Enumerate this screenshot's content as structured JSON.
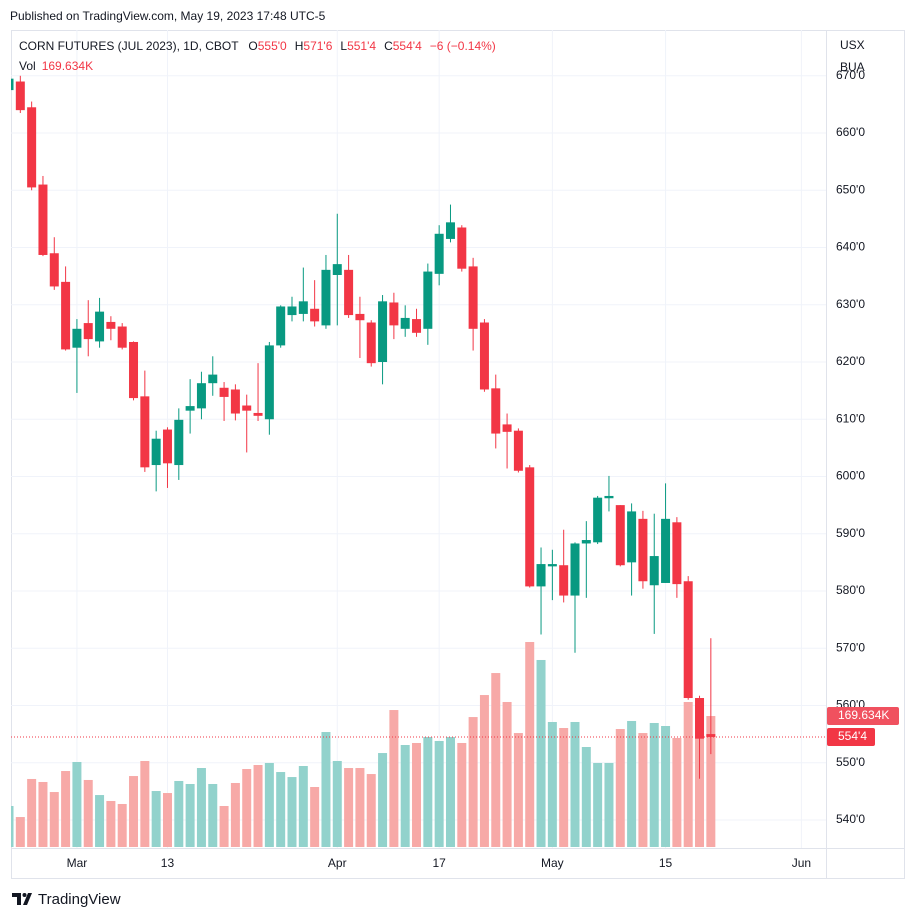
{
  "published": "Published on TradingView.com, May 19, 2023 17:48 UTC-5",
  "brand": "TradingView",
  "header": {
    "symbol": "CORN FUTURES (JUL 2023), 1D, CBOT",
    "items": [
      {
        "key": "O",
        "value": "555'0"
      },
      {
        "key": "H",
        "value": "571'6"
      },
      {
        "key": "L",
        "value": "551'4"
      },
      {
        "key": "C",
        "value": "554'4"
      }
    ],
    "change": "−6 (−0.14%)",
    "volume_key": "Vol",
    "volume_value": "169.634K",
    "currency": "USX",
    "unit": "BUA"
  },
  "chart_data": {
    "type": "candlestick",
    "up_color": "#089981",
    "down_color": "#f23645",
    "volume_up_color": "#92d2cc",
    "volume_down_color": "#f7a9a7",
    "categories": [
      null,
      null,
      null,
      null,
      null,
      null,
      "Mar",
      null,
      null,
      null,
      null,
      null,
      null,
      null,
      "13",
      null,
      null,
      null,
      null,
      null,
      null,
      null,
      null,
      null,
      null,
      null,
      null,
      null,
      null,
      "Apr",
      null,
      null,
      null,
      null,
      null,
      null,
      null,
      null,
      "17",
      null,
      null,
      null,
      null,
      null,
      null,
      null,
      null,
      null,
      "May",
      null,
      null,
      null,
      null,
      null,
      null,
      null,
      null,
      null,
      "15",
      null,
      null,
      null,
      null,
      null,
      null,
      null,
      null,
      null,
      null,
      null,
      "Jun"
    ],
    "open": [
      667.5,
      669,
      664.5,
      651,
      639,
      634,
      622.5,
      626.8,
      623.6,
      627,
      626.2,
      623.5,
      614,
      602,
      608.2,
      602,
      611.5,
      611.9,
      616.3,
      615.5,
      615.2,
      612.4,
      611.1,
      610,
      622.9,
      628.2,
      628.4,
      629.3,
      626.4,
      635.2,
      636.1,
      628.4,
      626.9,
      620,
      630.4,
      625.8,
      627.5,
      625.8,
      635.4,
      641.5,
      643.5,
      636.7,
      626.9,
      615.4,
      609.1,
      608,
      601.6,
      580.8,
      584.3,
      584.5,
      579.2,
      588.3,
      588.5,
      596.2,
      595,
      585,
      592.6,
      581,
      581.4,
      592,
      581.7,
      561.3,
      555,
      null,
      null,
      null,
      null,
      null,
      null,
      null,
      null
    ],
    "high": [
      670.5,
      670,
      665.5,
      652.5,
      641.8,
      636.7,
      627.5,
      630.8,
      631.2,
      628,
      626.8,
      623.6,
      618.5,
      608,
      608.6,
      611.9,
      617,
      618.3,
      621,
      616.5,
      616.1,
      614.3,
      619.8,
      623.5,
      629.9,
      631.4,
      636.5,
      634.3,
      638.7,
      645.9,
      638.7,
      631.4,
      627.3,
      631.7,
      632.1,
      629.9,
      629.3,
      637.2,
      643.9,
      647.5,
      643.9,
      638.2,
      627.5,
      617.8,
      611,
      608.4,
      602,
      587.6,
      587.2,
      590.7,
      588.5,
      592.2,
      596.6,
      600.1,
      595,
      595.3,
      594,
      593.5,
      598.8,
      592.9,
      582.6,
      561.7,
      571.75,
      null,
      null,
      null,
      null,
      null,
      null,
      null,
      null
    ],
    "low": [
      666,
      663.5,
      650,
      638.5,
      632.6,
      622,
      614.6,
      621,
      622.5,
      623.8,
      622.2,
      613.3,
      600.8,
      597.4,
      598,
      599.4,
      607.5,
      610,
      614.1,
      609.7,
      609.8,
      604.2,
      609.7,
      607.3,
      622.5,
      627.1,
      627.1,
      626.2,
      625.8,
      626.4,
      627.7,
      620.7,
      619.2,
      616.1,
      624,
      624.4,
      624.4,
      623,
      633.4,
      640.9,
      635.8,
      622,
      614.8,
      604.9,
      601.4,
      600.7,
      580.6,
      572.4,
      578.4,
      578,
      569.2,
      578.8,
      588.2,
      593.9,
      584.3,
      579.2,
      580.4,
      572.5,
      581.4,
      578.8,
      561,
      547.2,
      551.5,
      null,
      null,
      null,
      null,
      null,
      null,
      null,
      null
    ],
    "close": [
      669.5,
      664,
      650.5,
      638.7,
      633.2,
      622.2,
      625.8,
      624,
      628.8,
      625.8,
      622.5,
      613.7,
      601.6,
      606.6,
      602.3,
      609.9,
      612.3,
      616.3,
      617.8,
      613.9,
      611,
      611.5,
      610.6,
      622.9,
      629.7,
      629.7,
      630.6,
      627.1,
      636.1,
      637.1,
      628.2,
      627.3,
      619.8,
      630.6,
      626.4,
      627.7,
      625.1,
      635.8,
      642.4,
      644.4,
      636.3,
      625.8,
      615.2,
      607.5,
      607.8,
      601,
      580.8,
      584.7,
      584.7,
      579.2,
      588.3,
      588.9,
      596.3,
      596.6,
      584.5,
      593.9,
      581.7,
      586.1,
      592.6,
      581.2,
      561.3,
      554.2,
      554.5,
      null,
      null,
      null,
      null,
      null,
      null,
      null,
      null
    ],
    "volume": [
      53.1,
      38.8,
      88.1,
      84.2,
      71.2,
      98.4,
      110.1,
      86.8,
      67.3,
      59.6,
      55.7,
      91.9,
      111.4,
      72.5,
      69.9,
      85.5,
      81.6,
      102.3,
      81.6,
      53.1,
      82.9,
      101.0,
      106.2,
      108.8,
      97.1,
      90.6,
      104.9,
      77.7,
      148.9,
      111.4,
      102.3,
      102.3,
      94.5,
      121.7,
      177.4,
      132.1,
      134.7,
      142.4,
      137.3,
      142.4,
      134.7,
      168.3,
      196.8,
      225.3,
      187.8,
      147.6,
      265.5,
      242.2,
      161.9,
      154.1,
      161.9,
      129.5,
      108.8,
      108.8,
      152.8,
      163.2,
      147.6,
      160.6,
      156.7,
      141.2,
      187.8,
      182.6,
      169.634,
      null,
      null,
      null,
      null,
      null,
      null,
      null,
      null
    ],
    "ylim": [
      535.1,
      678
    ],
    "yticks": [
      {
        "value": 540,
        "label": "540'0"
      },
      {
        "value": 550,
        "label": "550'0"
      },
      {
        "value": 560,
        "label": "560'0"
      },
      {
        "value": 570,
        "label": "570'0"
      },
      {
        "value": 580,
        "label": "580'0"
      },
      {
        "value": 590,
        "label": "590'0"
      },
      {
        "value": 600,
        "label": "600'0"
      },
      {
        "value": 610,
        "label": "610'0"
      },
      {
        "value": 620,
        "label": "620'0"
      },
      {
        "value": 630,
        "label": "630'0"
      },
      {
        "value": 640,
        "label": "640'0"
      },
      {
        "value": 650,
        "label": "650'0"
      },
      {
        "value": 660,
        "label": "660'0"
      },
      {
        "value": 670,
        "label": "670'0"
      }
    ],
    "grid": true
  }
}
